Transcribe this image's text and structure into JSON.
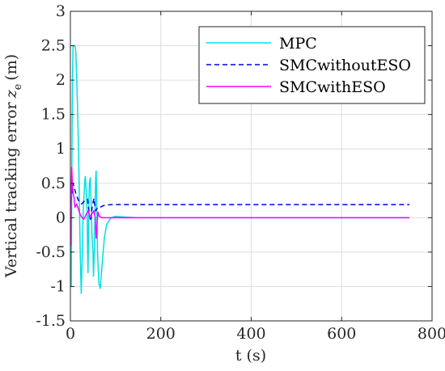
{
  "chart_data": {
    "type": "line",
    "xlabel": "t (s)",
    "ylabel": "Vertical tracking error",
    "ylabel_var": "z",
    "ylabel_sub": "e",
    "ylabel_unit": "(m)",
    "xlim": [
      0,
      800
    ],
    "ylim": [
      -1.5,
      3
    ],
    "xticks": [
      0,
      200,
      400,
      600,
      800
    ],
    "xtick_labels": [
      "0",
      "200",
      "400",
      "600",
      "800"
    ],
    "yticks": [
      -1.5,
      -1,
      -0.5,
      0,
      0.5,
      1,
      1.5,
      2,
      2.5,
      3
    ],
    "ytick_labels": [
      "-1.5",
      "-1",
      "-0.5",
      "0",
      "0.5",
      "1",
      "1.5",
      "2",
      "2.5",
      "3"
    ],
    "grid": true,
    "legend_position": "top-right",
    "series": [
      {
        "name": "MPC",
        "color": "#00e0e0",
        "style": "solid",
        "points": [
          [
            0,
            0.0
          ],
          [
            1,
            -0.8
          ],
          [
            2,
            -1.0
          ],
          [
            3,
            0.5
          ],
          [
            4,
            1.5
          ],
          [
            5,
            2.2
          ],
          [
            6,
            2.5
          ],
          [
            10,
            2.5
          ],
          [
            12,
            2.4
          ],
          [
            15,
            1.8
          ],
          [
            18,
            1.0
          ],
          [
            20,
            0.2
          ],
          [
            22,
            -0.6
          ],
          [
            24,
            -1.1
          ],
          [
            26,
            -0.6
          ],
          [
            28,
            0.0
          ],
          [
            30,
            0.3
          ],
          [
            32,
            0.55
          ],
          [
            33,
            0.6
          ],
          [
            35,
            0.4
          ],
          [
            37,
            0.1
          ],
          [
            38,
            -0.5
          ],
          [
            39,
            -0.8
          ],
          [
            40,
            -0.3
          ],
          [
            41,
            0.25
          ],
          [
            42,
            0.5
          ],
          [
            44,
            0.58
          ],
          [
            46,
            0.2
          ],
          [
            48,
            -0.3
          ],
          [
            50,
            -0.5
          ],
          [
            51,
            -0.85
          ],
          [
            53,
            -0.5
          ],
          [
            55,
            0.3
          ],
          [
            56,
            0.6
          ],
          [
            57,
            0.68
          ],
          [
            58,
            0.3
          ],
          [
            60,
            -0.5
          ],
          [
            63,
            -0.95
          ],
          [
            66,
            -1.03
          ],
          [
            70,
            -0.7
          ],
          [
            75,
            -0.3
          ],
          [
            80,
            -0.1
          ],
          [
            90,
            0.0
          ],
          [
            100,
            0.02
          ],
          [
            120,
            0.01
          ],
          [
            150,
            0.0
          ],
          [
            750,
            0.0
          ]
        ]
      },
      {
        "name": "SMCwithoutESO",
        "color": "#0000e6",
        "style": "dashed",
        "points": [
          [
            0,
            0.0
          ],
          [
            2,
            0.3
          ],
          [
            4,
            0.42
          ],
          [
            6,
            0.5
          ],
          [
            8,
            0.45
          ],
          [
            12,
            0.35
          ],
          [
            18,
            0.25
          ],
          [
            25,
            0.2
          ],
          [
            32,
            0.25
          ],
          [
            38,
            0.27
          ],
          [
            42,
            0.05
          ],
          [
            45,
            -0.05
          ],
          [
            48,
            0.15
          ],
          [
            52,
            0.28
          ],
          [
            56,
            0.1
          ],
          [
            60,
            0.15
          ],
          [
            65,
            0.15
          ],
          [
            75,
            0.18
          ],
          [
            90,
            0.19
          ],
          [
            120,
            0.19
          ],
          [
            750,
            0.19
          ]
        ]
      },
      {
        "name": "SMCwithESO",
        "color": "#ff00ff",
        "style": "solid",
        "points": [
          [
            0,
            0.0
          ],
          [
            1,
            -0.4
          ],
          [
            2,
            0.4
          ],
          [
            3,
            0.73
          ],
          [
            4,
            0.55
          ],
          [
            6,
            0.35
          ],
          [
            8,
            0.3
          ],
          [
            10,
            0.15
          ],
          [
            14,
            0.2
          ],
          [
            18,
            0.12
          ],
          [
            22,
            0.04
          ],
          [
            26,
            0.0
          ],
          [
            30,
            -0.02
          ],
          [
            35,
            0.05
          ],
          [
            40,
            0.1
          ],
          [
            44,
            0.0
          ],
          [
            47,
            0.05
          ],
          [
            52,
            0.1
          ],
          [
            55,
            0.0
          ],
          [
            57,
            -0.3
          ],
          [
            59,
            -0.1
          ],
          [
            61,
            0.08
          ],
          [
            64,
            0.02
          ],
          [
            70,
            0.0
          ],
          [
            750,
            0.0
          ]
        ]
      }
    ]
  }
}
